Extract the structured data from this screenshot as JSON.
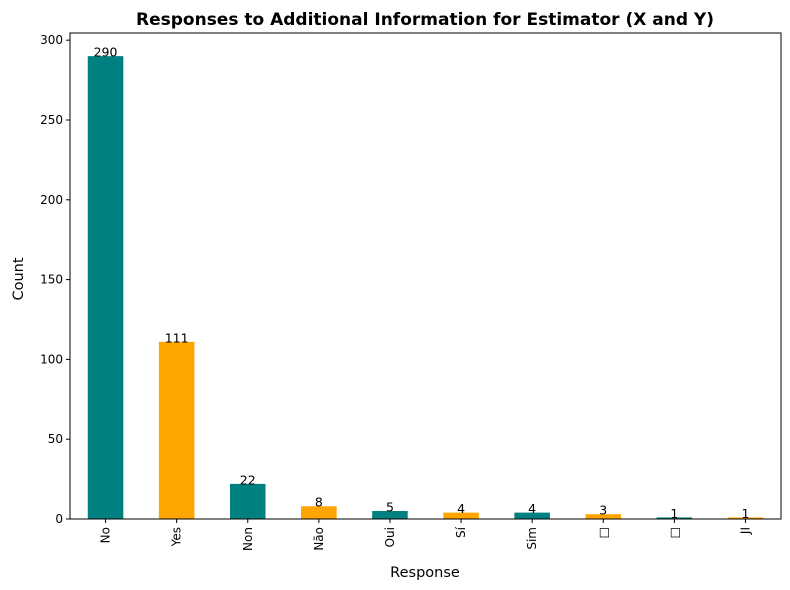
{
  "chart_data": {
    "type": "bar",
    "title": "Responses to Additional Information for Estimator (X and Y)",
    "xlabel": "Response",
    "ylabel": "Count",
    "categories": [
      "No",
      "Yes",
      "Non",
      "Não",
      "Oui",
      "Sí",
      "Sim",
      "□",
      "□",
      "JI"
    ],
    "values": [
      290,
      111,
      22,
      8,
      5,
      4,
      4,
      3,
      1,
      1
    ],
    "colors": [
      "#008080",
      "#FFA500",
      "#008080",
      "#FFA500",
      "#008080",
      "#FFA500",
      "#008080",
      "#FFA500",
      "#008080",
      "#FFA500"
    ],
    "ylim": [
      0,
      304.5
    ],
    "yticks": [
      0,
      50,
      100,
      150,
      200,
      250,
      300
    ],
    "grid": false,
    "legend": "none",
    "x_tick_rotation": "vertical"
  }
}
